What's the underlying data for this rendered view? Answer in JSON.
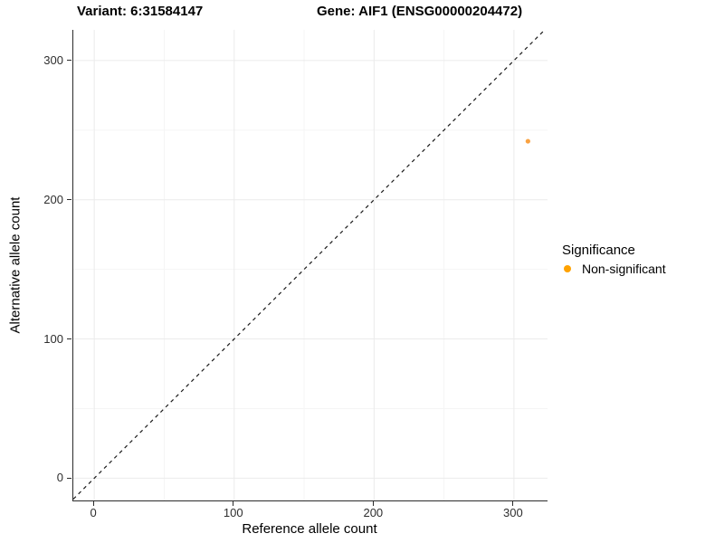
{
  "title": {
    "variant": "Variant: 6:31584147",
    "gene": "Gene: AIF1 (ENSG00000204472)"
  },
  "axes": {
    "x_label": "Reference allele count",
    "y_label": "Alternative allele count"
  },
  "legend": {
    "title": "Significance",
    "items": [
      {
        "label": "Non-significant",
        "color": "#FFA201"
      }
    ]
  },
  "chart_data": {
    "type": "scatter",
    "title": "Variant: 6:31584147   Gene: AIF1 (ENSG00000204472)",
    "xlabel": "Reference allele count",
    "ylabel": "Alternative allele count",
    "xlim": [
      -15,
      324
    ],
    "ylim": [
      -16,
      322
    ],
    "x_ticks": [
      0,
      100,
      200,
      300
    ],
    "y_ticks": [
      0,
      100,
      200,
      300
    ],
    "x_minor_ticks": [
      50,
      150,
      250
    ],
    "y_minor_ticks": [
      50,
      150,
      250
    ],
    "grid": "on",
    "legend_position": "right",
    "series": [
      {
        "name": "Non-significant",
        "color": "#F9A242",
        "points": [
          {
            "x": 310,
            "y": 242
          }
        ]
      }
    ],
    "reference_line": {
      "type": "identity",
      "style": "dashed",
      "color": "#1a1a1a"
    },
    "colors": {
      "grid_major": "#ebebeb",
      "grid_minor": "#f5f5f5",
      "axis_line": "#2b2b2b"
    }
  }
}
